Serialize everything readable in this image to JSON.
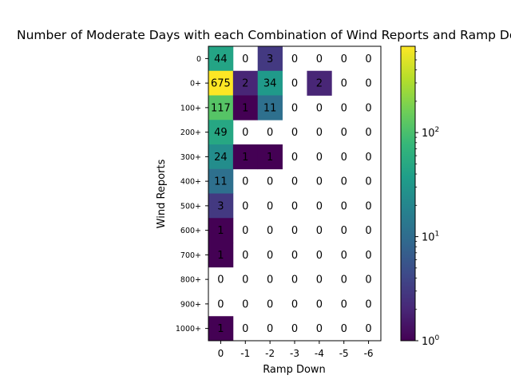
{
  "chart_data": {
    "type": "heatmap",
    "title": "Number of Moderate Days with each Combination of Wind Reports and Ramp Down",
    "xlabel": "Ramp Down",
    "ylabel": "Wind Reports",
    "x_categories": [
      "0",
      "-1",
      "-2",
      "-3",
      "-4",
      "-5",
      "-6"
    ],
    "y_categories": [
      "0",
      "0+",
      "100+",
      "200+",
      "300+",
      "400+",
      "500+",
      "600+",
      "700+",
      "800+",
      "900+",
      "1000+"
    ],
    "values": [
      [
        44,
        0,
        3,
        0,
        0,
        0,
        0
      ],
      [
        675,
        2,
        34,
        0,
        2,
        0,
        0
      ],
      [
        117,
        1,
        11,
        0,
        0,
        0,
        0
      ],
      [
        49,
        0,
        0,
        0,
        0,
        0,
        0
      ],
      [
        24,
        1,
        1,
        0,
        0,
        0,
        0
      ],
      [
        11,
        0,
        0,
        0,
        0,
        0,
        0
      ],
      [
        3,
        0,
        0,
        0,
        0,
        0,
        0
      ],
      [
        1,
        0,
        0,
        0,
        0,
        0,
        0
      ],
      [
        1,
        0,
        0,
        0,
        0,
        0,
        0
      ],
      [
        0,
        0,
        0,
        0,
        0,
        0,
        0
      ],
      [
        0,
        0,
        0,
        0,
        0,
        0,
        0
      ],
      [
        1,
        0,
        0,
        0,
        0,
        0,
        0
      ]
    ],
    "colorbar": {
      "scale": "log",
      "colormap": "viridis",
      "range": [
        1,
        675
      ],
      "ticks": [
        {
          "value": 1,
          "base": "10",
          "exp": "0"
        },
        {
          "value": 10,
          "base": "10",
          "exp": "1"
        },
        {
          "value": 100,
          "base": "10",
          "exp": "2"
        }
      ]
    },
    "zero_cells": "blank",
    "grid": false
  }
}
